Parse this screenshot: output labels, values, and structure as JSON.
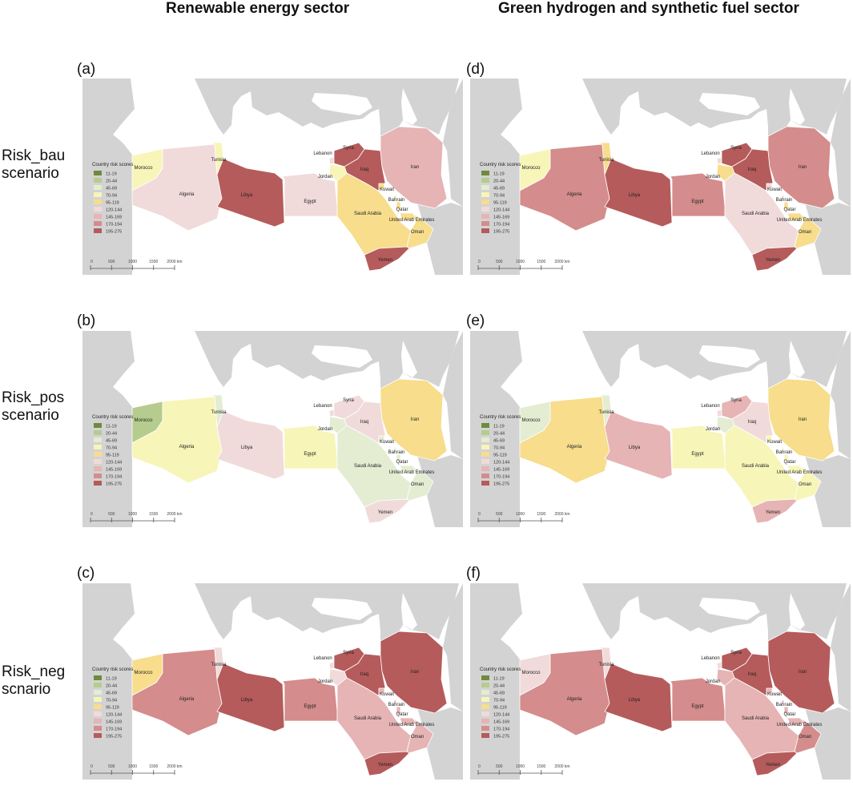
{
  "columns": {
    "left": "Renewable energy sector",
    "right": "Green hydrogen and synthetic fuel sector"
  },
  "rows": [
    {
      "line1": "Risk_bau",
      "line2": "scenario"
    },
    {
      "line1": "Risk_pos",
      "line2": "scenario"
    },
    {
      "line1": "Risk_neg",
      "line2": "scnario"
    }
  ],
  "legend": {
    "title": "Country risk scores",
    "classes": [
      {
        "label": "11-19",
        "color": "#6e8b3d"
      },
      {
        "label": "20-44",
        "color": "#b5cc8e"
      },
      {
        "label": "45-69",
        "color": "#e4ecd2"
      },
      {
        "label": "70-94",
        "color": "#f7f5b8"
      },
      {
        "label": "95-119",
        "color": "#f7dd8c"
      },
      {
        "label": "120-144",
        "color": "#f1dada"
      },
      {
        "label": "145-169",
        "color": "#e6b4b4"
      },
      {
        "label": "170-194",
        "color": "#d48c8c"
      },
      {
        "label": "195-275",
        "color": "#b55b5b"
      }
    ]
  },
  "scalebar": {
    "ticks": [
      "0",
      "500",
      "1000",
      "1500",
      "2000 km"
    ]
  },
  "country_names": {
    "morocco": "Morocco",
    "algeria": "Algeria",
    "tunisia": "Tunisia",
    "libya": "Libya",
    "egypt": "Egypt",
    "lebanon": "Lebanon",
    "syria": "Syria",
    "jordan": "Jordan",
    "iraq": "Iraq",
    "iran": "Iran",
    "kuwait": "Kuwait",
    "bahrain": "Bahrain",
    "qatar": "Qatar",
    "uae": "United Arab Emirates",
    "saudi": "Saudi Arabia",
    "oman": "Oman",
    "yemen": "Yemen"
  },
  "panels": [
    {
      "label": "(a)",
      "scores": {
        "morocco": "70-94",
        "algeria": "120-144",
        "tunisia": "70-94",
        "libya": "195-275",
        "egypt": "120-144",
        "lebanon": "120-144",
        "syria": "195-275",
        "jordan": "70-94",
        "iraq": "195-275",
        "iran": "145-169",
        "kuwait": "95-119",
        "bahrain": "95-119",
        "qatar": "95-119",
        "uae": "95-119",
        "saudi": "95-119",
        "oman": "95-119",
        "yemen": "195-275"
      }
    },
    {
      "label": "(b)",
      "scores": {
        "morocco": "20-44",
        "algeria": "70-94",
        "tunisia": "45-69",
        "libya": "120-144",
        "egypt": "70-94",
        "lebanon": "120-144",
        "syria": "120-144",
        "jordan": "45-69",
        "iraq": "120-144",
        "iran": "95-119",
        "kuwait": "45-69",
        "bahrain": "45-69",
        "qatar": "45-69",
        "uae": "45-69",
        "saudi": "45-69",
        "oman": "45-69",
        "yemen": "120-144"
      }
    },
    {
      "label": "(c)",
      "scores": {
        "morocco": "95-119",
        "algeria": "170-194",
        "tunisia": "120-144",
        "libya": "195-275",
        "egypt": "170-194",
        "lebanon": "120-144",
        "syria": "195-275",
        "jordan": "120-144",
        "iraq": "195-275",
        "iran": "195-275",
        "kuwait": "145-169",
        "bahrain": "145-169",
        "qatar": "145-169",
        "uae": "145-169",
        "saudi": "145-169",
        "oman": "145-169",
        "yemen": "195-275"
      }
    },
    {
      "label": "(d)",
      "scores": {
        "morocco": "70-94",
        "algeria": "170-194",
        "tunisia": "95-119",
        "libya": "195-275",
        "egypt": "170-194",
        "lebanon": "120-144",
        "syria": "195-275",
        "jordan": "95-119",
        "iraq": "195-275",
        "iran": "170-194",
        "kuwait": "120-144",
        "bahrain": "120-144",
        "qatar": "95-119",
        "uae": "95-119",
        "saudi": "120-144",
        "oman": "95-119",
        "yemen": "195-275"
      }
    },
    {
      "label": "(e)",
      "scores": {
        "morocco": "45-69",
        "algeria": "95-119",
        "tunisia": "45-69",
        "libya": "145-169",
        "egypt": "70-94",
        "lebanon": "120-144",
        "syria": "145-169",
        "jordan": "45-69",
        "iraq": "120-144",
        "iran": "95-119",
        "kuwait": "70-94",
        "bahrain": "70-94",
        "qatar": "70-94",
        "uae": "70-94",
        "saudi": "70-94",
        "oman": "70-94",
        "yemen": "145-169"
      }
    },
    {
      "label": "(f)",
      "scores": {
        "morocco": "120-144",
        "algeria": "170-194",
        "tunisia": "120-144",
        "libya": "195-275",
        "egypt": "170-194",
        "lebanon": "120-144",
        "syria": "195-275",
        "jordan": "145-169",
        "iraq": "195-275",
        "iran": "195-275",
        "kuwait": "145-169",
        "bahrain": "145-169",
        "qatar": "145-169",
        "uae": "145-169",
        "saudi": "145-169",
        "oman": "170-194",
        "yemen": "195-275"
      }
    }
  ]
}
